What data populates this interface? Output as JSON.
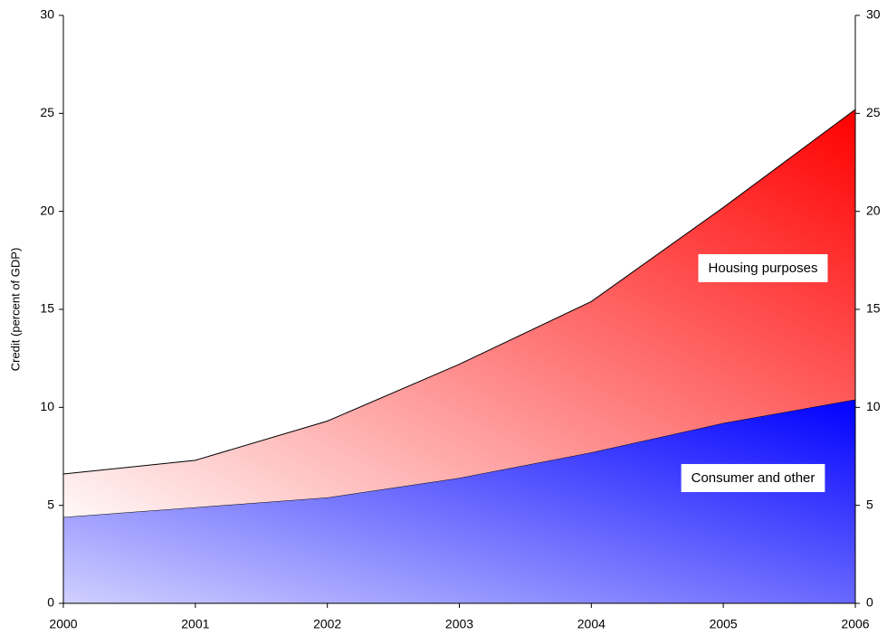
{
  "chart_data": {
    "type": "stacked-area",
    "y_label": "Credit (percent of GDP)",
    "x": [
      2000,
      2001,
      2002,
      2003,
      2004,
      2005,
      2006
    ],
    "xlim": [
      2000,
      2006
    ],
    "xticks": [
      2000,
      2001,
      2002,
      2003,
      2004,
      2005,
      2006
    ],
    "series": [
      {
        "name": "Consumer and other",
        "color": "#0000ff",
        "values": [
          4.4,
          4.9,
          5.4,
          6.4,
          7.7,
          9.2,
          10.4
        ]
      },
      {
        "name": "Housing purposes",
        "color": "#ff0000",
        "values": [
          2.2,
          2.4,
          3.9,
          5.8,
          7.7,
          11.0,
          14.8
        ]
      }
    ],
    "ylim": [
      0,
      30
    ],
    "yticks": [
      0,
      5,
      10,
      15,
      20,
      25,
      30
    ],
    "y2lim": [
      0,
      30
    ],
    "y2ticks": [
      0,
      5,
      10,
      15,
      20,
      25,
      30
    ]
  }
}
